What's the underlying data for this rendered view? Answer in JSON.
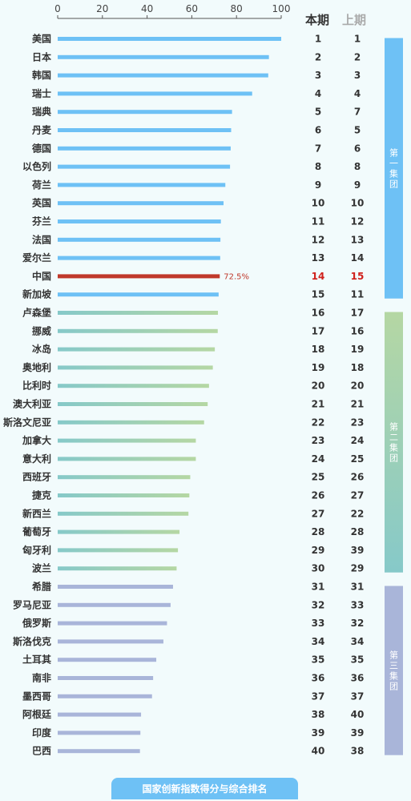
{
  "chart_data": {
    "type": "bar",
    "orientation": "horizontal",
    "xlim": [
      0,
      100
    ],
    "x_ticks": [
      "0",
      "20",
      "40",
      "60",
      "80",
      "100"
    ],
    "title": "国家创新指数得分与综合排名",
    "column_headers": {
      "current": "本期",
      "previous": "上期"
    },
    "highlight": {
      "country": "中国",
      "value_label": "72.5%"
    },
    "colors": {
      "group1": "#6ec1f5",
      "group2_left": "#86c9c9",
      "group2_right": "#b5d7a3",
      "group3": "#a9b5d9",
      "highlight": "#c0392b",
      "header_prev": "#aaaaaa",
      "header_cur": "#333333"
    },
    "groups": [
      {
        "name": "第一集团",
        "from": 1,
        "to": 15
      },
      {
        "name": "第二集团",
        "from": 16,
        "to": 30
      },
      {
        "name": "第三集团",
        "from": 31,
        "to": 40
      }
    ],
    "rows": [
      {
        "country": "美国",
        "value": 100,
        "current": "1",
        "previous": "1"
      },
      {
        "country": "日本",
        "value": 94.5,
        "current": "2",
        "previous": "2"
      },
      {
        "country": "韩国",
        "value": 94.2,
        "current": "3",
        "previous": "3"
      },
      {
        "country": "瑞士",
        "value": 87,
        "current": "4",
        "previous": "4"
      },
      {
        "country": "瑞典",
        "value": 78,
        "current": "5",
        "previous": "7"
      },
      {
        "country": "丹麦",
        "value": 77.6,
        "current": "6",
        "previous": "5"
      },
      {
        "country": "德国",
        "value": 77.4,
        "current": "7",
        "previous": "6"
      },
      {
        "country": "以色列",
        "value": 77.1,
        "current": "8",
        "previous": "8"
      },
      {
        "country": "荷兰",
        "value": 75,
        "current": "9",
        "previous": "9"
      },
      {
        "country": "英国",
        "value": 74.2,
        "current": "10",
        "previous": "10"
      },
      {
        "country": "芬兰",
        "value": 73,
        "current": "11",
        "previous": "12"
      },
      {
        "country": "法国",
        "value": 72.8,
        "current": "12",
        "previous": "13"
      },
      {
        "country": "爱尔兰",
        "value": 72.7,
        "current": "13",
        "previous": "14"
      },
      {
        "country": "中国",
        "value": 72.5,
        "current": "14",
        "previous": "15"
      },
      {
        "country": "新加坡",
        "value": 72,
        "current": "15",
        "previous": "11"
      },
      {
        "country": "卢森堡",
        "value": 71.7,
        "current": "16",
        "previous": "17"
      },
      {
        "country": "挪威",
        "value": 71.6,
        "current": "17",
        "previous": "16"
      },
      {
        "country": "冰岛",
        "value": 70.3,
        "current": "18",
        "previous": "19"
      },
      {
        "country": "奥地利",
        "value": 69.4,
        "current": "19",
        "previous": "18"
      },
      {
        "country": "比利时",
        "value": 67.7,
        "current": "20",
        "previous": "20"
      },
      {
        "country": "澳大利亚",
        "value": 67.1,
        "current": "21",
        "previous": "21"
      },
      {
        "country": "斯洛文尼亚",
        "value": 65.5,
        "current": "22",
        "previous": "23"
      },
      {
        "country": "加拿大",
        "value": 61.8,
        "current": "23",
        "previous": "24"
      },
      {
        "country": "意大利",
        "value": 61.8,
        "current": "24",
        "previous": "25"
      },
      {
        "country": "西班牙",
        "value": 59.3,
        "current": "25",
        "previous": "26"
      },
      {
        "country": "捷克",
        "value": 58.9,
        "current": "26",
        "previous": "27"
      },
      {
        "country": "新西兰",
        "value": 58.5,
        "current": "27",
        "previous": "22"
      },
      {
        "country": "葡萄牙",
        "value": 54.5,
        "current": "28",
        "previous": "28"
      },
      {
        "country": "匈牙利",
        "value": 53.8,
        "current": "29",
        "previous": "39"
      },
      {
        "country": "波兰",
        "value": 53.2,
        "current": "30",
        "previous": "29"
      },
      {
        "country": "希腊",
        "value": 51.6,
        "current": "31",
        "previous": "31"
      },
      {
        "country": "罗马尼亚",
        "value": 50.5,
        "current": "32",
        "previous": "33"
      },
      {
        "country": "俄罗斯",
        "value": 48.9,
        "current": "33",
        "previous": "32"
      },
      {
        "country": "斯洛伐克",
        "value": 47.3,
        "current": "34",
        "previous": "34"
      },
      {
        "country": "土耳其",
        "value": 44.1,
        "current": "35",
        "previous": "35"
      },
      {
        "country": "南非",
        "value": 42.7,
        "current": "36",
        "previous": "36"
      },
      {
        "country": "墨西哥",
        "value": 42.2,
        "current": "37",
        "previous": "37"
      },
      {
        "country": "阿根廷",
        "value": 37.3,
        "current": "38",
        "previous": "40"
      },
      {
        "country": "印度",
        "value": 37,
        "current": "39",
        "previous": "39"
      },
      {
        "country": "巴西",
        "value": 36.8,
        "current": "40",
        "previous": "38"
      }
    ]
  }
}
